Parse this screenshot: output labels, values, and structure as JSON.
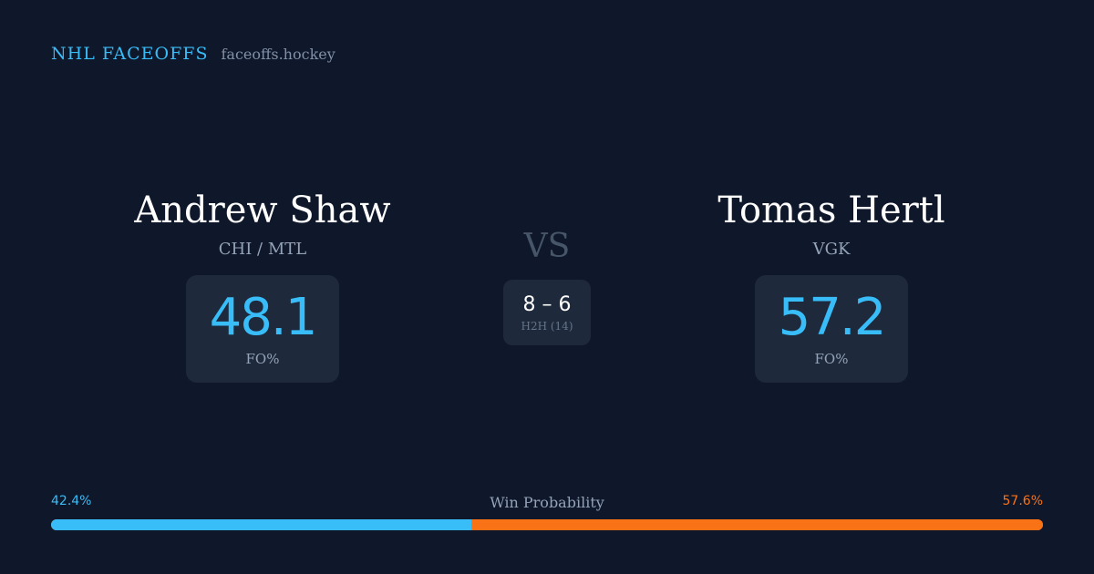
{
  "brand": {
    "name": "NHL FACEOFFS",
    "site": "faceoffs.hockey"
  },
  "player_left": {
    "name": "Andrew Shaw",
    "team": "CHI / MTL",
    "fo_pct": "48.1",
    "fo_label": "FO%"
  },
  "player_right": {
    "name": "Tomas Hertl",
    "team": "VGK",
    "fo_pct": "57.2",
    "fo_label": "FO%"
  },
  "versus": {
    "label": "VS",
    "h2h_score": "8 – 6",
    "h2h_label": "H2H (14)"
  },
  "win_probability": {
    "title": "Win Probability",
    "left_label": "42.4%",
    "right_label": "57.6%",
    "left_fraction": 0.424,
    "left_color": "#38bdf8",
    "right_color": "#f97316"
  }
}
